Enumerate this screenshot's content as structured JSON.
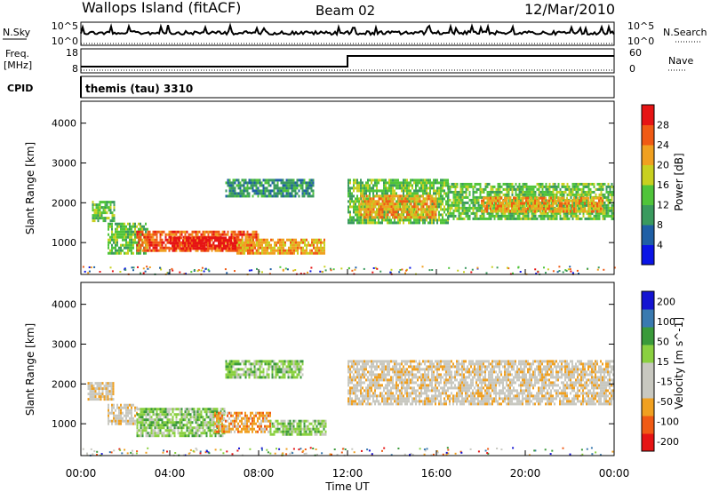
{
  "header": {
    "title": "Wallops Island (fitACF)",
    "beam": "Beam 02",
    "date": "12/Mar/2010"
  },
  "top_panels": {
    "nsky": {
      "label": "N.Sky",
      "right_label": "N.Search",
      "ticks": [
        "10^5",
        "10^0"
      ]
    },
    "freq": {
      "label": "Freq.",
      "unit": "[MHz]",
      "ticks_left": [
        "18",
        "8"
      ],
      "ticks_right": [
        "60",
        "0"
      ],
      "right_label": "Nave"
    },
    "cpid": {
      "label": "CPID",
      "value": "themis (tau) 3310"
    }
  },
  "time_axis": {
    "label": "Time UT",
    "ticks": [
      "00:00",
      "04:00",
      "08:00",
      "12:00",
      "16:00",
      "20:00",
      "00:00"
    ]
  },
  "colors": {
    "power": [
      "#0a14e6",
      "#1f5fa5",
      "#3a9a5e",
      "#50c43a",
      "#c8d020",
      "#f0a020",
      "#f05a14",
      "#e61414"
    ],
    "velocity": [
      "#e61414",
      "#f05a14",
      "#f0a020",
      "#c8c8c0",
      "#c8c8c0",
      "#8ad040",
      "#3a9a3a",
      "#3a7ab0",
      "#1414d2"
    ]
  },
  "chart_data": [
    {
      "type": "heatmap",
      "name": "power",
      "ylabel": "Slant Range [km]",
      "yticks": [
        "1000",
        "2000",
        "3000",
        "4000"
      ],
      "ylim": [
        200,
        4550
      ],
      "xlim": [
        0,
        24
      ],
      "colorbar": {
        "label": "Power [dB]",
        "ticks": [
          "4",
          "8",
          "12",
          "16",
          "20",
          "24",
          "28"
        ]
      },
      "regions": [
        {
          "t": [
            0.5,
            1.5
          ],
          "r": [
            1550,
            2050
          ],
          "level": 3
        },
        {
          "t": [
            1.2,
            3.0
          ],
          "r": [
            700,
            1500
          ],
          "level": 3
        },
        {
          "t": [
            2.5,
            8.0
          ],
          "r": [
            800,
            1300
          ],
          "level": 6
        },
        {
          "t": [
            4.0,
            7.0
          ],
          "r": [
            850,
            1150
          ],
          "level": 7
        },
        {
          "t": [
            7.0,
            11.0
          ],
          "r": [
            750,
            1100
          ],
          "level": 5
        },
        {
          "t": [
            6.5,
            10.5
          ],
          "r": [
            2150,
            2600
          ],
          "level": 2
        },
        {
          "t": [
            12.0,
            16.5
          ],
          "r": [
            1500,
            2600
          ],
          "level": 3
        },
        {
          "t": [
            12.5,
            16.0
          ],
          "r": [
            1600,
            2200
          ],
          "level": 5
        },
        {
          "t": [
            16.5,
            24.0
          ],
          "r": [
            1600,
            2500
          ],
          "level": 3
        },
        {
          "t": [
            18.0,
            23.5
          ],
          "r": [
            1750,
            2150
          ],
          "level": 5
        }
      ]
    },
    {
      "type": "heatmap",
      "name": "velocity",
      "ylabel": "Slant Range [km]",
      "yticks": [
        "1000",
        "2000",
        "3000",
        "4000"
      ],
      "ylim": [
        200,
        4550
      ],
      "xlim": [
        0,
        24
      ],
      "colorbar": {
        "label": "Velocity [m s^-1]",
        "ticks": [
          "200",
          "100",
          "50",
          "15",
          "-15",
          "-50",
          "-100",
          "-200"
        ]
      },
      "regions": [
        {
          "t": [
            0.3,
            1.5
          ],
          "r": [
            1600,
            2050
          ],
          "level": 3
        },
        {
          "t": [
            1.2,
            2.5
          ],
          "r": [
            1000,
            1500
          ],
          "level": 3
        },
        {
          "t": [
            2.5,
            6.5
          ],
          "r": [
            700,
            1400
          ],
          "level": 5
        },
        {
          "t": [
            6.0,
            8.5
          ],
          "r": [
            800,
            1300
          ],
          "level": 2
        },
        {
          "t": [
            8.5,
            11.0
          ],
          "r": [
            750,
            1100
          ],
          "level": 5
        },
        {
          "t": [
            6.5,
            10.0
          ],
          "r": [
            2150,
            2600
          ],
          "level": 5
        },
        {
          "t": [
            12.0,
            24.0
          ],
          "r": [
            1500,
            2600
          ],
          "level": 3
        }
      ]
    }
  ]
}
